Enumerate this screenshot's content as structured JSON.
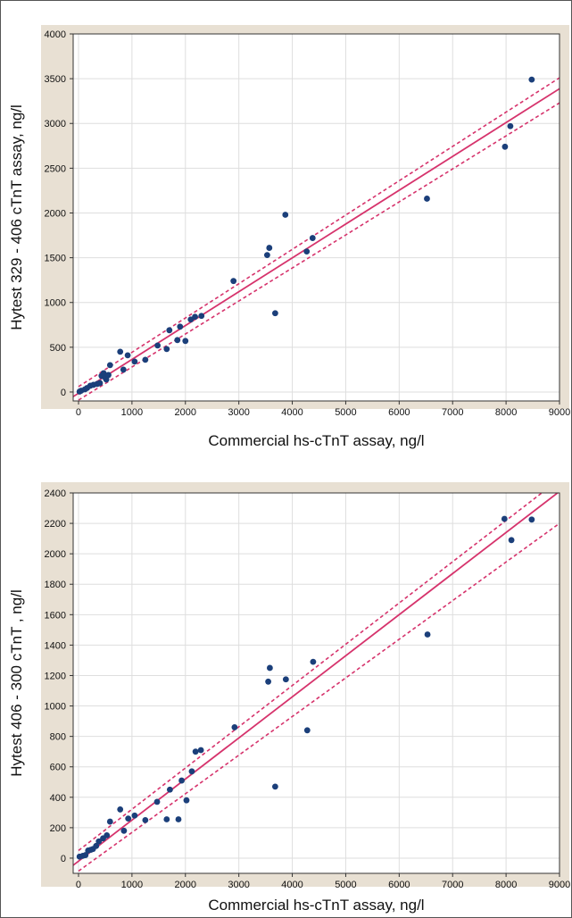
{
  "colors": {
    "plot_bg_band": "#e8e0d3",
    "grid": "#dedede",
    "point": "#1b3f7a",
    "fit_line": "#d6336c",
    "confidence_band": "#d6336c"
  },
  "chart_data": [
    {
      "type": "scatter",
      "title": "",
      "xlabel": "Commercial hs-cTnT assay, ng/l",
      "ylabel": "Hytest 329 - 406 cTnT assay, ng/l",
      "xlim": [
        -100,
        9000
      ],
      "ylim": [
        -100,
        4000
      ],
      "xticks": [
        0,
        1000,
        2000,
        3000,
        4000,
        5000,
        6000,
        7000,
        8000,
        9000
      ],
      "yticks": [
        0,
        500,
        1000,
        1500,
        2000,
        2500,
        3000,
        3500,
        4000
      ],
      "grid": true,
      "fit": {
        "slope": 0.378,
        "intercept": -14
      },
      "confidence_band": [
        {
          "x": 0,
          "upper": 60,
          "lower": -90
        },
        {
          "x": 9000,
          "upper": 3510,
          "lower": 3230
        }
      ],
      "points": [
        {
          "x": 20,
          "y": 5
        },
        {
          "x": 50,
          "y": 15
        },
        {
          "x": 120,
          "y": 30
        },
        {
          "x": 160,
          "y": 45
        },
        {
          "x": 220,
          "y": 70
        },
        {
          "x": 280,
          "y": 80
        },
        {
          "x": 350,
          "y": 90
        },
        {
          "x": 400,
          "y": 100
        },
        {
          "x": 430,
          "y": 180
        },
        {
          "x": 470,
          "y": 210
        },
        {
          "x": 500,
          "y": 160
        },
        {
          "x": 520,
          "y": 140
        },
        {
          "x": 560,
          "y": 190
        },
        {
          "x": 590,
          "y": 300
        },
        {
          "x": 780,
          "y": 450
        },
        {
          "x": 840,
          "y": 250
        },
        {
          "x": 920,
          "y": 410
        },
        {
          "x": 1050,
          "y": 340
        },
        {
          "x": 1250,
          "y": 360
        },
        {
          "x": 1480,
          "y": 520
        },
        {
          "x": 1650,
          "y": 480
        },
        {
          "x": 1700,
          "y": 690
        },
        {
          "x": 1850,
          "y": 580
        },
        {
          "x": 1900,
          "y": 730
        },
        {
          "x": 2000,
          "y": 570
        },
        {
          "x": 2100,
          "y": 810
        },
        {
          "x": 2180,
          "y": 840
        },
        {
          "x": 2300,
          "y": 850
        },
        {
          "x": 2900,
          "y": 1240
        },
        {
          "x": 3530,
          "y": 1530
        },
        {
          "x": 3570,
          "y": 1610
        },
        {
          "x": 3680,
          "y": 880
        },
        {
          "x": 3870,
          "y": 1980
        },
        {
          "x": 4270,
          "y": 1570
        },
        {
          "x": 4380,
          "y": 1720
        },
        {
          "x": 6520,
          "y": 2160
        },
        {
          "x": 7980,
          "y": 2740
        },
        {
          "x": 8080,
          "y": 2970
        },
        {
          "x": 8480,
          "y": 3490
        }
      ]
    },
    {
      "type": "scatter",
      "title": "",
      "xlabel": "Commercial hs-cTnT assay, ng/l",
      "ylabel": "Hytest 406 - 300 cTnT , ng/l",
      "xlim": [
        -100,
        9000
      ],
      "ylim": [
        -100,
        2400
      ],
      "xticks": [
        0,
        1000,
        2000,
        3000,
        4000,
        5000,
        6000,
        7000,
        8000,
        9000
      ],
      "yticks": [
        0,
        200,
        400,
        600,
        800,
        1000,
        1200,
        1400,
        1600,
        1800,
        2000,
        2200,
        2400
      ],
      "grid": true,
      "fit": {
        "slope": 0.27,
        "intercept": -20
      },
      "confidence_band": [
        {
          "x": 0,
          "upper": 50,
          "lower": -85
        },
        {
          "x": 9000,
          "upper": 2490,
          "lower": 2200
        }
      ],
      "points": [
        {
          "x": 20,
          "y": 10
        },
        {
          "x": 80,
          "y": 15
        },
        {
          "x": 130,
          "y": 20
        },
        {
          "x": 180,
          "y": 50
        },
        {
          "x": 230,
          "y": 55
        },
        {
          "x": 270,
          "y": 60
        },
        {
          "x": 330,
          "y": 80
        },
        {
          "x": 380,
          "y": 110
        },
        {
          "x": 460,
          "y": 130
        },
        {
          "x": 530,
          "y": 150
        },
        {
          "x": 590,
          "y": 240
        },
        {
          "x": 780,
          "y": 320
        },
        {
          "x": 850,
          "y": 180
        },
        {
          "x": 930,
          "y": 260
        },
        {
          "x": 1050,
          "y": 280
        },
        {
          "x": 1250,
          "y": 250
        },
        {
          "x": 1470,
          "y": 370
        },
        {
          "x": 1650,
          "y": 255
        },
        {
          "x": 1710,
          "y": 450
        },
        {
          "x": 1870,
          "y": 255
        },
        {
          "x": 1930,
          "y": 510
        },
        {
          "x": 2020,
          "y": 380
        },
        {
          "x": 2120,
          "y": 570
        },
        {
          "x": 2190,
          "y": 700
        },
        {
          "x": 2290,
          "y": 710
        },
        {
          "x": 2920,
          "y": 860
        },
        {
          "x": 3550,
          "y": 1160
        },
        {
          "x": 3580,
          "y": 1250
        },
        {
          "x": 3680,
          "y": 470
        },
        {
          "x": 3880,
          "y": 1175
        },
        {
          "x": 4280,
          "y": 840
        },
        {
          "x": 4390,
          "y": 1290
        },
        {
          "x": 6530,
          "y": 1470
        },
        {
          "x": 7970,
          "y": 2230
        },
        {
          "x": 8100,
          "y": 2090
        },
        {
          "x": 8480,
          "y": 2225
        }
      ]
    }
  ]
}
